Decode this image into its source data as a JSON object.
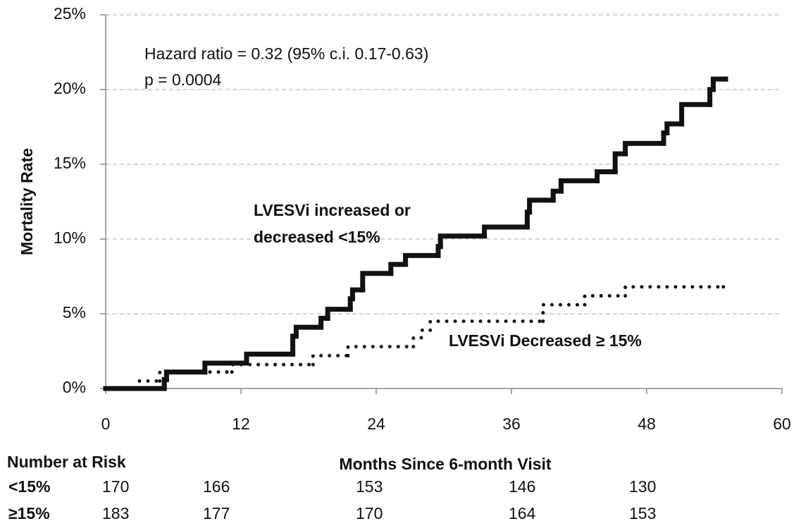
{
  "chart_data": {
    "type": "step",
    "y_label": "Mortality Rate",
    "x_label": "Months Since 6-month Visit",
    "xlim": [
      0,
      60
    ],
    "xticks": [
      0,
      12,
      24,
      36,
      48,
      60
    ],
    "ylim": [
      0,
      25
    ],
    "yticks": [
      {
        "value": 0,
        "label": "0%"
      },
      {
        "value": 5,
        "label": "5%"
      },
      {
        "value": 10,
        "label": "10%"
      },
      {
        "value": 15,
        "label": "15%"
      },
      {
        "value": 20,
        "label": "20%"
      },
      {
        "value": 25,
        "label": "25%"
      }
    ],
    "grid": true,
    "annotations": [
      "Hazard ratio = 0.32 (95% c.i. 0.17-0.63)",
      "p = 0.0004"
    ],
    "series": [
      {
        "name_lines": [
          "LVESVi increased or",
          "decreased <15%"
        ],
        "color": "#111111",
        "style": "solid",
        "x": [
          0,
          5.2,
          5.4,
          8.8,
          12.5,
          16.6,
          16.9,
          19.1,
          19.7,
          21.7,
          21.9,
          22.8,
          25.3,
          26.6,
          29.5,
          29.7,
          33.6,
          37.4,
          37.6,
          39.7,
          40.4,
          43.6,
          45.2,
          46.1,
          49.5,
          49.8,
          51.1,
          53.6,
          53.9,
          55
        ],
        "values": [
          0,
          0.6,
          1.1,
          1.7,
          2.3,
          3.5,
          4.1,
          4.7,
          5.3,
          6.0,
          6.6,
          7.7,
          8.3,
          8.9,
          9.5,
          10.2,
          10.8,
          11.8,
          12.6,
          13.2,
          13.9,
          14.5,
          15.7,
          16.4,
          17.1,
          17.7,
          19.0,
          20.0,
          20.7,
          20.7
        ]
      },
      {
        "name": "LVESVi Decreased ≥ 15%",
        "color": "#111111",
        "style": "dotted",
        "x": [
          3,
          4.8,
          11.2,
          18.4,
          21.5,
          27.3,
          28.0,
          28.8,
          38.8,
          42.5,
          46.1,
          54.8
        ],
        "values": [
          0.5,
          1.1,
          1.6,
          2.2,
          2.8,
          3.4,
          3.9,
          4.5,
          5.6,
          6.2,
          6.8,
          6.8
        ]
      }
    ]
  },
  "risk_table": {
    "title": "Number at Risk",
    "rows": [
      {
        "label": "<15%",
        "values": [
          170,
          166,
          153,
          146,
          130
        ]
      },
      {
        "label": "≥15%",
        "values": [
          183,
          177,
          170,
          164,
          153
        ]
      }
    ]
  }
}
